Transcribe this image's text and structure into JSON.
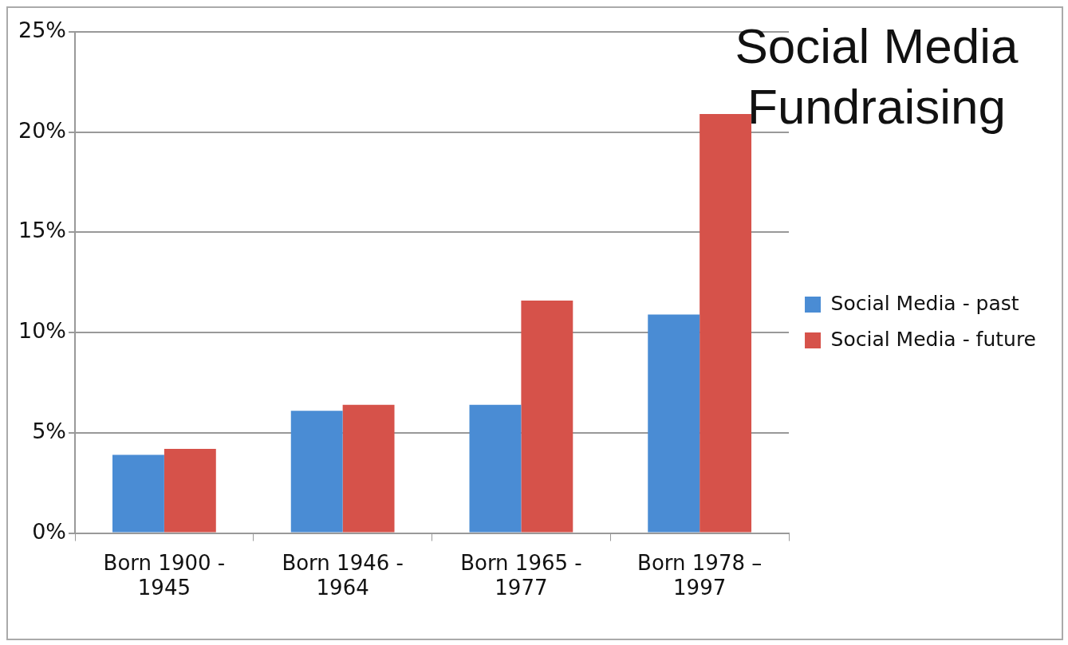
{
  "chart_data": {
    "type": "bar",
    "title": "Social Media Fundraising",
    "categories": [
      "Born 1900 - 1945",
      "Born 1946 - 1964",
      "Born 1965 - 1977",
      "Born 1978 – 1997"
    ],
    "series": [
      {
        "name": "Social Media - past",
        "color": "#4a8cd4",
        "values": [
          3.9,
          6.1,
          6.4,
          10.9
        ]
      },
      {
        "name": "Social Media - future",
        "color": "#d6524a",
        "values": [
          4.2,
          6.4,
          11.6,
          20.9
        ]
      }
    ],
    "ylim": [
      0,
      25
    ],
    "yticks": [
      {
        "value": 0,
        "label": "0%"
      },
      {
        "value": 5,
        "label": "5%"
      },
      {
        "value": 10,
        "label": "10%"
      },
      {
        "value": 15,
        "label": "15%"
      },
      {
        "value": 20,
        "label": "20%"
      },
      {
        "value": 25,
        "label": "25%"
      }
    ],
    "grid": "y",
    "legend": "right"
  }
}
